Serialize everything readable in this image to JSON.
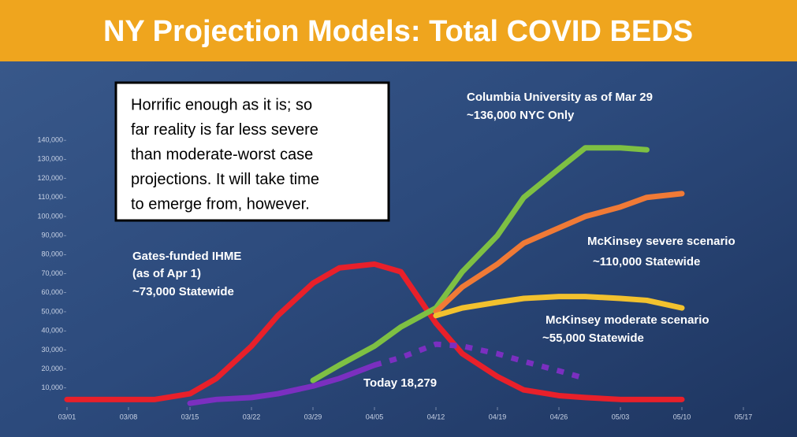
{
  "chart_data": {
    "type": "line",
    "title": "NY Projection Models: Total COVID BEDS",
    "x": [
      "03/01",
      "03/04",
      "03/08",
      "03/11",
      "03/15",
      "03/18",
      "03/22",
      "03/25",
      "03/29",
      "04/01",
      "04/05",
      "04/08",
      "04/12",
      "04/15",
      "04/19",
      "04/22",
      "04/26",
      "04/29",
      "05/03",
      "05/06",
      "05/10"
    ],
    "series": [
      {
        "color": "#e8202a",
        "values": [
          4000,
          4000,
          4000,
          4000,
          7000,
          15000,
          32000,
          48000,
          65000,
          73000,
          75000,
          71000,
          44000,
          28000,
          16000,
          9000,
          6000,
          5000,
          4000,
          4000,
          4000
        ]
      },
      {
        "color": "#7ec043",
        "values": [
          null,
          null,
          null,
          null,
          null,
          null,
          null,
          null,
          14000,
          22000,
          32000,
          42000,
          52000,
          71000,
          90000,
          110000,
          125000,
          136000,
          136000,
          135000,
          null
        ]
      },
      {
        "color": "#f07a36",
        "values": [
          null,
          null,
          null,
          null,
          null,
          null,
          null,
          null,
          null,
          null,
          null,
          null,
          50000,
          63000,
          75000,
          86000,
          94000,
          100000,
          105000,
          110000,
          112000
        ]
      },
      {
        "color": "#f2c12e",
        "values": [
          null,
          null,
          null,
          null,
          null,
          null,
          null,
          null,
          null,
          null,
          null,
          null,
          48000,
          52000,
          55000,
          57000,
          58000,
          58000,
          57000,
          56000,
          52000
        ]
      },
      {
        "color": "#7b2fc0",
        "values": [
          null,
          null,
          null,
          null,
          2000,
          4000,
          5000,
          7000,
          11000,
          15000,
          22000,
          null,
          null,
          null,
          null,
          null,
          null,
          null,
          null,
          null,
          null
        ]
      },
      {
        "color": "#7b2fc0",
        "style": "dotted",
        "values": [
          null,
          null,
          null,
          null,
          null,
          null,
          null,
          null,
          null,
          null,
          22000,
          26000,
          33000,
          32000,
          28000,
          24000,
          19000,
          15000,
          null,
          null,
          null
        ]
      }
    ],
    "ylim": [
      0,
      145000
    ],
    "yticks": [
      {
        "value": 10000,
        "label": "10,000"
      },
      {
        "value": 20000,
        "label": "20,000"
      },
      {
        "value": 30000,
        "label": "30,000"
      },
      {
        "value": 40000,
        "label": "40,000"
      },
      {
        "value": 50000,
        "label": "50,000"
      },
      {
        "value": 60000,
        "label": "60,000"
      },
      {
        "value": 70000,
        "label": "70,000"
      },
      {
        "value": 80000,
        "label": "80,000"
      },
      {
        "value": 90000,
        "label": "90,000"
      },
      {
        "value": 100000,
        "label": "100,000"
      },
      {
        "value": 110000,
        "label": "110,000"
      },
      {
        "value": 120000,
        "label": "120,000"
      },
      {
        "value": 130000,
        "label": "130,000"
      },
      {
        "value": 140000,
        "label": "140,000"
      }
    ],
    "xticks": [
      "03/01",
      "03/08",
      "03/15",
      "03/22",
      "03/29",
      "04/05",
      "04/12",
      "04/19",
      "04/26",
      "05/03",
      "05/10",
      "05/17"
    ],
    "annotations": [
      "Gates-funded IHME",
      "(as of Apr 1)",
      "~73,000 Statewide",
      "Columbia University as of Mar 29",
      "~136,000 NYC Only",
      "McKinsey severe scenario",
      "~110,000 Statewide",
      "McKinsey moderate scenario",
      "~55,000 Statewide",
      "Today 18,279"
    ],
    "note": [
      "Horrific enough as it is; so",
      "far reality is far less severe",
      "than moderate-worst case",
      "projections. It will take time",
      "to emerge from, however."
    ]
  }
}
